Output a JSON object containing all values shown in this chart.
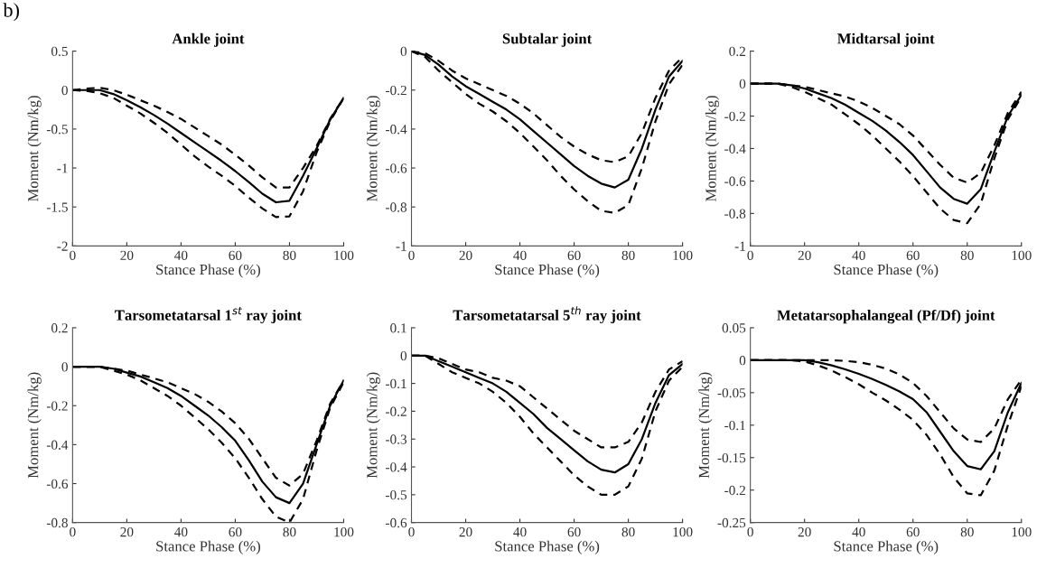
{
  "chart_data": [
    {
      "type": "line",
      "title": "Ankle joint",
      "xlabel": "Stance Phase (%)",
      "ylabel": "Moment (Nm/kg)",
      "annotations": [
        "b)"
      ],
      "xlim": [
        0,
        100
      ],
      "xticks": [
        0,
        20,
        40,
        60,
        80,
        100
      ],
      "ylim": [
        -2,
        0.5
      ],
      "yticks": [
        -2,
        -1.5,
        -1,
        -0.5,
        0,
        0.5
      ],
      "x": [
        0,
        5,
        10,
        15,
        20,
        25,
        30,
        35,
        40,
        45,
        50,
        55,
        60,
        65,
        70,
        75,
        80,
        85,
        90,
        95,
        100
      ],
      "series": [
        {
          "color": "#000000",
          "line_style": "solid",
          "values": [
            0,
            0,
            0,
            -0.05,
            -0.13,
            -0.22,
            -0.32,
            -0.43,
            -0.55,
            -0.67,
            -0.79,
            -0.91,
            -1.04,
            -1.18,
            -1.33,
            -1.44,
            -1.42,
            -1.1,
            -0.75,
            -0.38,
            -0.1
          ]
        },
        {
          "color": "#000000",
          "line_style": "dashed",
          "values": [
            0,
            0.02,
            0.03,
            0.0,
            -0.06,
            -0.13,
            -0.2,
            -0.28,
            -0.37,
            -0.48,
            -0.59,
            -0.7,
            -0.83,
            -0.97,
            -1.12,
            -1.25,
            -1.25,
            -1.0,
            -0.72,
            -0.37,
            -0.1
          ]
        },
        {
          "color": "#000000",
          "line_style": "dashed",
          "values": [
            0,
            -0.01,
            -0.04,
            -0.1,
            -0.2,
            -0.3,
            -0.42,
            -0.55,
            -0.7,
            -0.85,
            -0.98,
            -1.1,
            -1.23,
            -1.38,
            -1.52,
            -1.63,
            -1.62,
            -1.3,
            -0.8,
            -0.4,
            -0.1
          ]
        }
      ]
    },
    {
      "type": "line",
      "title": "Subtalar joint",
      "xlabel": "Stance Phase (%)",
      "ylabel": "Moment (Nm/kg)",
      "xlim": [
        0,
        100
      ],
      "xticks": [
        0,
        20,
        40,
        60,
        80,
        100
      ],
      "ylim": [
        -1,
        0
      ],
      "yticks": [
        -1,
        -0.8,
        -0.6,
        -0.4,
        -0.2,
        0
      ],
      "x": [
        0,
        5,
        10,
        15,
        20,
        25,
        30,
        35,
        40,
        45,
        50,
        55,
        60,
        65,
        70,
        75,
        80,
        85,
        90,
        95,
        100
      ],
      "series": [
        {
          "color": "#000000",
          "line_style": "solid",
          "values": [
            0,
            -0.02,
            -0.07,
            -0.13,
            -0.18,
            -0.22,
            -0.26,
            -0.3,
            -0.35,
            -0.41,
            -0.47,
            -0.53,
            -0.59,
            -0.64,
            -0.68,
            -0.7,
            -0.66,
            -0.5,
            -0.3,
            -0.13,
            -0.05
          ]
        },
        {
          "color": "#000000",
          "line_style": "dashed",
          "values": [
            0,
            -0.01,
            -0.05,
            -0.1,
            -0.14,
            -0.17,
            -0.2,
            -0.23,
            -0.27,
            -0.32,
            -0.38,
            -0.44,
            -0.49,
            -0.53,
            -0.56,
            -0.57,
            -0.54,
            -0.42,
            -0.24,
            -0.1,
            -0.03
          ]
        },
        {
          "color": "#000000",
          "line_style": "dashed",
          "values": [
            0,
            -0.03,
            -0.1,
            -0.16,
            -0.22,
            -0.27,
            -0.31,
            -0.36,
            -0.42,
            -0.49,
            -0.56,
            -0.64,
            -0.71,
            -0.77,
            -0.82,
            -0.83,
            -0.79,
            -0.6,
            -0.36,
            -0.17,
            -0.07
          ]
        }
      ]
    },
    {
      "type": "line",
      "title": "Midtarsal joint",
      "xlabel": "Stance Phase (%)",
      "ylabel": "Moment (Nm/kg)",
      "xlim": [
        0,
        100
      ],
      "xticks": [
        0,
        20,
        40,
        60,
        80,
        100
      ],
      "ylim": [
        -1,
        0.2
      ],
      "yticks": [
        -1,
        -0.8,
        -0.6,
        -0.4,
        -0.2,
        0,
        0.2
      ],
      "x": [
        0,
        5,
        10,
        15,
        20,
        25,
        30,
        35,
        40,
        45,
        50,
        55,
        60,
        65,
        70,
        75,
        80,
        85,
        90,
        95,
        100
      ],
      "series": [
        {
          "color": "#000000",
          "line_style": "solid",
          "values": [
            0,
            0,
            0,
            -0.01,
            -0.03,
            -0.06,
            -0.09,
            -0.13,
            -0.18,
            -0.23,
            -0.29,
            -0.36,
            -0.44,
            -0.54,
            -0.64,
            -0.71,
            -0.74,
            -0.65,
            -0.42,
            -0.2,
            -0.07
          ]
        },
        {
          "color": "#000000",
          "line_style": "dashed",
          "values": [
            0,
            0,
            0,
            -0.01,
            -0.02,
            -0.04,
            -0.06,
            -0.08,
            -0.11,
            -0.15,
            -0.2,
            -0.25,
            -0.32,
            -0.41,
            -0.5,
            -0.58,
            -0.61,
            -0.55,
            -0.38,
            -0.18,
            -0.05
          ]
        },
        {
          "color": "#000000",
          "line_style": "dashed",
          "values": [
            0,
            0,
            0,
            -0.02,
            -0.05,
            -0.09,
            -0.13,
            -0.19,
            -0.25,
            -0.32,
            -0.4,
            -0.48,
            -0.57,
            -0.67,
            -0.77,
            -0.84,
            -0.86,
            -0.74,
            -0.46,
            -0.22,
            -0.08
          ]
        }
      ]
    },
    {
      "type": "line",
      "title": "Tarsometatarsal 1$^{st}$ ray joint",
      "xlabel": "Stance Phase (%)",
      "ylabel": "Moment (Nm/kg)",
      "xlim": [
        0,
        100
      ],
      "xticks": [
        0,
        20,
        40,
        60,
        80,
        100
      ],
      "ylim": [
        -0.8,
        0.2
      ],
      "yticks": [
        -0.8,
        -0.6,
        -0.4,
        -0.2,
        0,
        0.2
      ],
      "x": [
        0,
        5,
        10,
        15,
        20,
        25,
        30,
        35,
        40,
        45,
        50,
        55,
        60,
        65,
        70,
        75,
        80,
        85,
        90,
        95,
        100
      ],
      "series": [
        {
          "color": "#000000",
          "line_style": "solid",
          "values": [
            0,
            0,
            0,
            -0.01,
            -0.03,
            -0.05,
            -0.08,
            -0.11,
            -0.15,
            -0.2,
            -0.25,
            -0.31,
            -0.38,
            -0.48,
            -0.59,
            -0.67,
            -0.7,
            -0.6,
            -0.4,
            -0.2,
            -0.07
          ]
        },
        {
          "color": "#000000",
          "line_style": "dashed",
          "values": [
            0,
            0,
            0,
            -0.01,
            -0.02,
            -0.04,
            -0.06,
            -0.08,
            -0.11,
            -0.14,
            -0.18,
            -0.23,
            -0.29,
            -0.37,
            -0.47,
            -0.57,
            -0.61,
            -0.55,
            -0.38,
            -0.19,
            -0.07
          ]
        },
        {
          "color": "#000000",
          "line_style": "dashed",
          "values": [
            0,
            0,
            0,
            -0.02,
            -0.04,
            -0.07,
            -0.11,
            -0.15,
            -0.2,
            -0.26,
            -0.32,
            -0.39,
            -0.47,
            -0.57,
            -0.68,
            -0.77,
            -0.8,
            -0.68,
            -0.43,
            -0.21,
            -0.08
          ]
        }
      ]
    },
    {
      "type": "line",
      "title": "Tarsometatarsal 5$^{th}$ ray joint",
      "xlabel": "Stance Phase (%)",
      "ylabel": "Moment (Nm/kg)",
      "xlim": [
        0,
        100
      ],
      "xticks": [
        0,
        20,
        40,
        60,
        80,
        100
      ],
      "ylim": [
        -0.6,
        0.1
      ],
      "yticks": [
        -0.6,
        -0.5,
        -0.4,
        -0.3,
        -0.2,
        -0.1,
        0,
        0.1
      ],
      "x": [
        0,
        5,
        10,
        15,
        20,
        25,
        30,
        35,
        40,
        45,
        50,
        55,
        60,
        65,
        70,
        75,
        80,
        85,
        90,
        95,
        100
      ],
      "series": [
        {
          "color": "#000000",
          "line_style": "solid",
          "values": [
            0,
            0,
            -0.02,
            -0.04,
            -0.06,
            -0.08,
            -0.1,
            -0.13,
            -0.17,
            -0.21,
            -0.26,
            -0.3,
            -0.34,
            -0.38,
            -0.41,
            -0.42,
            -0.39,
            -0.3,
            -0.17,
            -0.07,
            -0.03
          ]
        },
        {
          "color": "#000000",
          "line_style": "dashed",
          "values": [
            0,
            0,
            -0.01,
            -0.03,
            -0.05,
            -0.06,
            -0.08,
            -0.09,
            -0.11,
            -0.15,
            -0.19,
            -0.23,
            -0.27,
            -0.3,
            -0.33,
            -0.33,
            -0.31,
            -0.24,
            -0.13,
            -0.05,
            -0.02
          ]
        },
        {
          "color": "#000000",
          "line_style": "dashed",
          "values": [
            0,
            0,
            -0.03,
            -0.06,
            -0.08,
            -0.1,
            -0.13,
            -0.17,
            -0.22,
            -0.28,
            -0.33,
            -0.38,
            -0.43,
            -0.47,
            -0.5,
            -0.5,
            -0.47,
            -0.37,
            -0.2,
            -0.09,
            -0.04
          ]
        }
      ]
    },
    {
      "type": "line",
      "title": "Metatarsophalangeal (Pf/Df) joint",
      "xlabel": "Stance Phase (%)",
      "ylabel": "Moment (Nm/kg)",
      "xlim": [
        0,
        100
      ],
      "xticks": [
        0,
        20,
        40,
        60,
        80,
        100
      ],
      "ylim": [
        -0.25,
        0.05
      ],
      "yticks": [
        -0.25,
        -0.2,
        -0.15,
        -0.1,
        -0.05,
        0,
        0.05
      ],
      "x": [
        0,
        5,
        10,
        15,
        20,
        25,
        30,
        35,
        40,
        45,
        50,
        55,
        60,
        65,
        70,
        75,
        80,
        85,
        90,
        95,
        100
      ],
      "series": [
        {
          "color": "#000000",
          "line_style": "solid",
          "values": [
            0,
            0,
            0,
            0,
            0,
            -0.003,
            -0.008,
            -0.014,
            -0.021,
            -0.029,
            -0.038,
            -0.048,
            -0.06,
            -0.08,
            -0.11,
            -0.14,
            -0.163,
            -0.168,
            -0.14,
            -0.08,
            -0.035
          ]
        },
        {
          "color": "#000000",
          "line_style": "dashed",
          "values": [
            0,
            0,
            0,
            0,
            0,
            0,
            0,
            -0.001,
            -0.003,
            -0.007,
            -0.013,
            -0.022,
            -0.035,
            -0.055,
            -0.08,
            -0.105,
            -0.122,
            -0.126,
            -0.105,
            -0.06,
            -0.03
          ]
        },
        {
          "color": "#000000",
          "line_style": "dashed",
          "values": [
            0,
            0,
            0,
            0,
            -0.002,
            -0.008,
            -0.016,
            -0.026,
            -0.037,
            -0.05,
            -0.062,
            -0.076,
            -0.092,
            -0.115,
            -0.145,
            -0.18,
            -0.205,
            -0.208,
            -0.17,
            -0.1,
            -0.04
          ]
        }
      ]
    }
  ]
}
